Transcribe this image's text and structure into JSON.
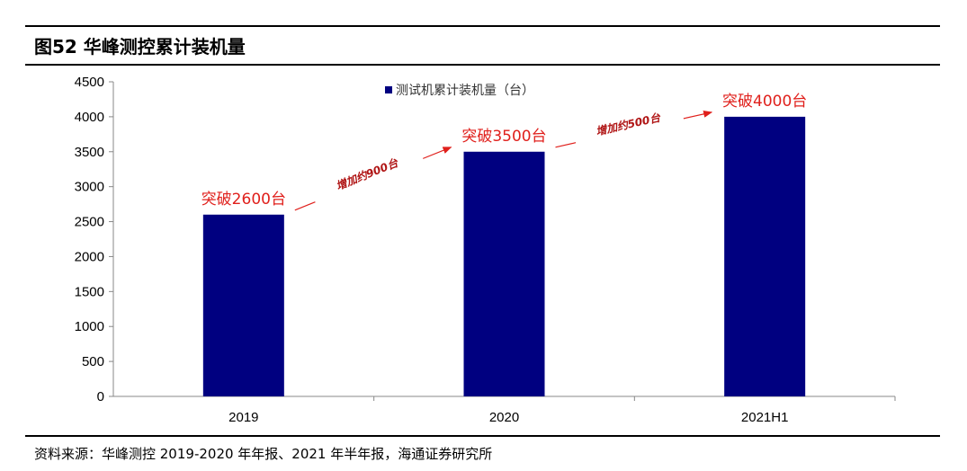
{
  "figure": {
    "title": "图52 华峰测控累计装机量",
    "source": "资料来源：华峰测控 2019-2020 年年报、2021 年半年报，海通证券研究所"
  },
  "colors": {
    "bar": "#000080",
    "annotation": "#e0201c",
    "axis": "#888888"
  },
  "chart_data": {
    "type": "bar",
    "categories": [
      "2019",
      "2020",
      "2021H1"
    ],
    "series": [
      {
        "name": "测试机累计装机量（台）",
        "values": [
          2600,
          3500,
          4000
        ]
      }
    ],
    "ylim": [
      0,
      4500
    ],
    "yticks": [
      0,
      500,
      1000,
      1500,
      2000,
      2500,
      3000,
      3500,
      4000,
      4500
    ],
    "legend_position": "top-center",
    "grid": false,
    "annotations": {
      "bar_labels": [
        "突破2600台",
        "突破3500台",
        "突破4000台"
      ],
      "increments": [
        "增加约900台",
        "增加约500台"
      ]
    }
  }
}
